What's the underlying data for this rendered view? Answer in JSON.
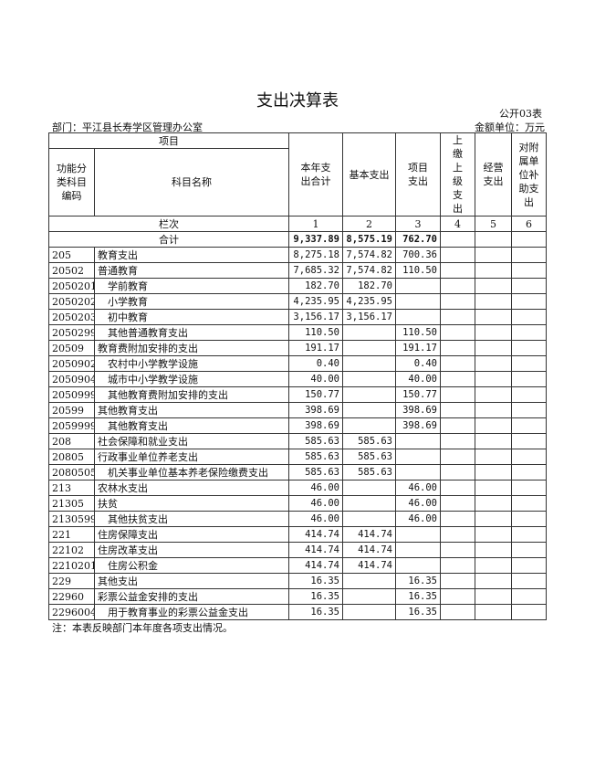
{
  "title": "支出决算表",
  "form_no": "公开03表",
  "department": "部门：平江县长寿学区管理办公室",
  "unit": "金额单位：万元",
  "headers": {
    "item": "项目",
    "code": "功能分类科目编码",
    "name": "科目名称",
    "total": "本年支出合计",
    "basic": "基本支出",
    "project": "项目支出",
    "upper": "上缴上级支出",
    "business": "经营支出",
    "subsidy": "对附属单位补助支出",
    "col_index": "栏次",
    "idx": [
      "1",
      "2",
      "3",
      "4",
      "5",
      "6"
    ]
  },
  "total_row": {
    "label": "合计",
    "total": "9,337.89",
    "basic": "8,575.19",
    "project": "762.70"
  },
  "rows": [
    {
      "code": "205",
      "name": "教育支出",
      "total": "8,275.18",
      "basic": "7,574.82",
      "project": "700.36",
      "indent": false
    },
    {
      "code": "20502",
      "name": "普通教育",
      "total": "7,685.32",
      "basic": "7,574.82",
      "project": "110.50",
      "indent": false
    },
    {
      "code": "2050201",
      "name": "学前教育",
      "total": "182.70",
      "basic": "182.70",
      "project": "",
      "indent": true
    },
    {
      "code": "2050202",
      "name": "小学教育",
      "total": "4,235.95",
      "basic": "4,235.95",
      "project": "",
      "indent": true
    },
    {
      "code": "2050203",
      "name": "初中教育",
      "total": "3,156.17",
      "basic": "3,156.17",
      "project": "",
      "indent": true
    },
    {
      "code": "2050299",
      "name": "其他普通教育支出",
      "total": "110.50",
      "basic": "",
      "project": "110.50",
      "indent": true
    },
    {
      "code": "20509",
      "name": "教育费附加安排的支出",
      "total": "191.17",
      "basic": "",
      "project": "191.17",
      "indent": false
    },
    {
      "code": "2050902",
      "name": "农村中小学教学设施",
      "total": "0.40",
      "basic": "",
      "project": "0.40",
      "indent": true
    },
    {
      "code": "2050904",
      "name": "城市中小学教学设施",
      "total": "40.00",
      "basic": "",
      "project": "40.00",
      "indent": true
    },
    {
      "code": "2050999",
      "name": "其他教育费附加安排的支出",
      "total": "150.77",
      "basic": "",
      "project": "150.77",
      "indent": true
    },
    {
      "code": "20599",
      "name": "其他教育支出",
      "total": "398.69",
      "basic": "",
      "project": "398.69",
      "indent": false
    },
    {
      "code": "2059999",
      "name": "其他教育支出",
      "total": "398.69",
      "basic": "",
      "project": "398.69",
      "indent": true
    },
    {
      "code": "208",
      "name": "社会保障和就业支出",
      "total": "585.63",
      "basic": "585.63",
      "project": "",
      "indent": false
    },
    {
      "code": "20805",
      "name": "行政事业单位养老支出",
      "total": "585.63",
      "basic": "585.63",
      "project": "",
      "indent": false
    },
    {
      "code": "2080505",
      "name": "机关事业单位基本养老保险缴费支出",
      "total": "585.63",
      "basic": "585.63",
      "project": "",
      "indent": true
    },
    {
      "code": "213",
      "name": "农林水支出",
      "total": "46.00",
      "basic": "",
      "project": "46.00",
      "indent": false
    },
    {
      "code": "21305",
      "name": "扶贫",
      "total": "46.00",
      "basic": "",
      "project": "46.00",
      "indent": false
    },
    {
      "code": "2130599",
      "name": "其他扶贫支出",
      "total": "46.00",
      "basic": "",
      "project": "46.00",
      "indent": true
    },
    {
      "code": "221",
      "name": "住房保障支出",
      "total": "414.74",
      "basic": "414.74",
      "project": "",
      "indent": false
    },
    {
      "code": "22102",
      "name": "住房改革支出",
      "total": "414.74",
      "basic": "414.74",
      "project": "",
      "indent": false
    },
    {
      "code": "2210201",
      "name": "住房公积金",
      "total": "414.74",
      "basic": "414.74",
      "project": "",
      "indent": true
    },
    {
      "code": "229",
      "name": "其他支出",
      "total": "16.35",
      "basic": "",
      "project": "16.35",
      "indent": false
    },
    {
      "code": "22960",
      "name": "彩票公益金安排的支出",
      "total": "16.35",
      "basic": "",
      "project": "16.35",
      "indent": false
    },
    {
      "code": "2296004",
      "name": "用于教育事业的彩票公益金支出",
      "total": "16.35",
      "basic": "",
      "project": "16.35",
      "indent": true
    }
  ],
  "note": "注：本表反映部门本年度各项支出情况。"
}
